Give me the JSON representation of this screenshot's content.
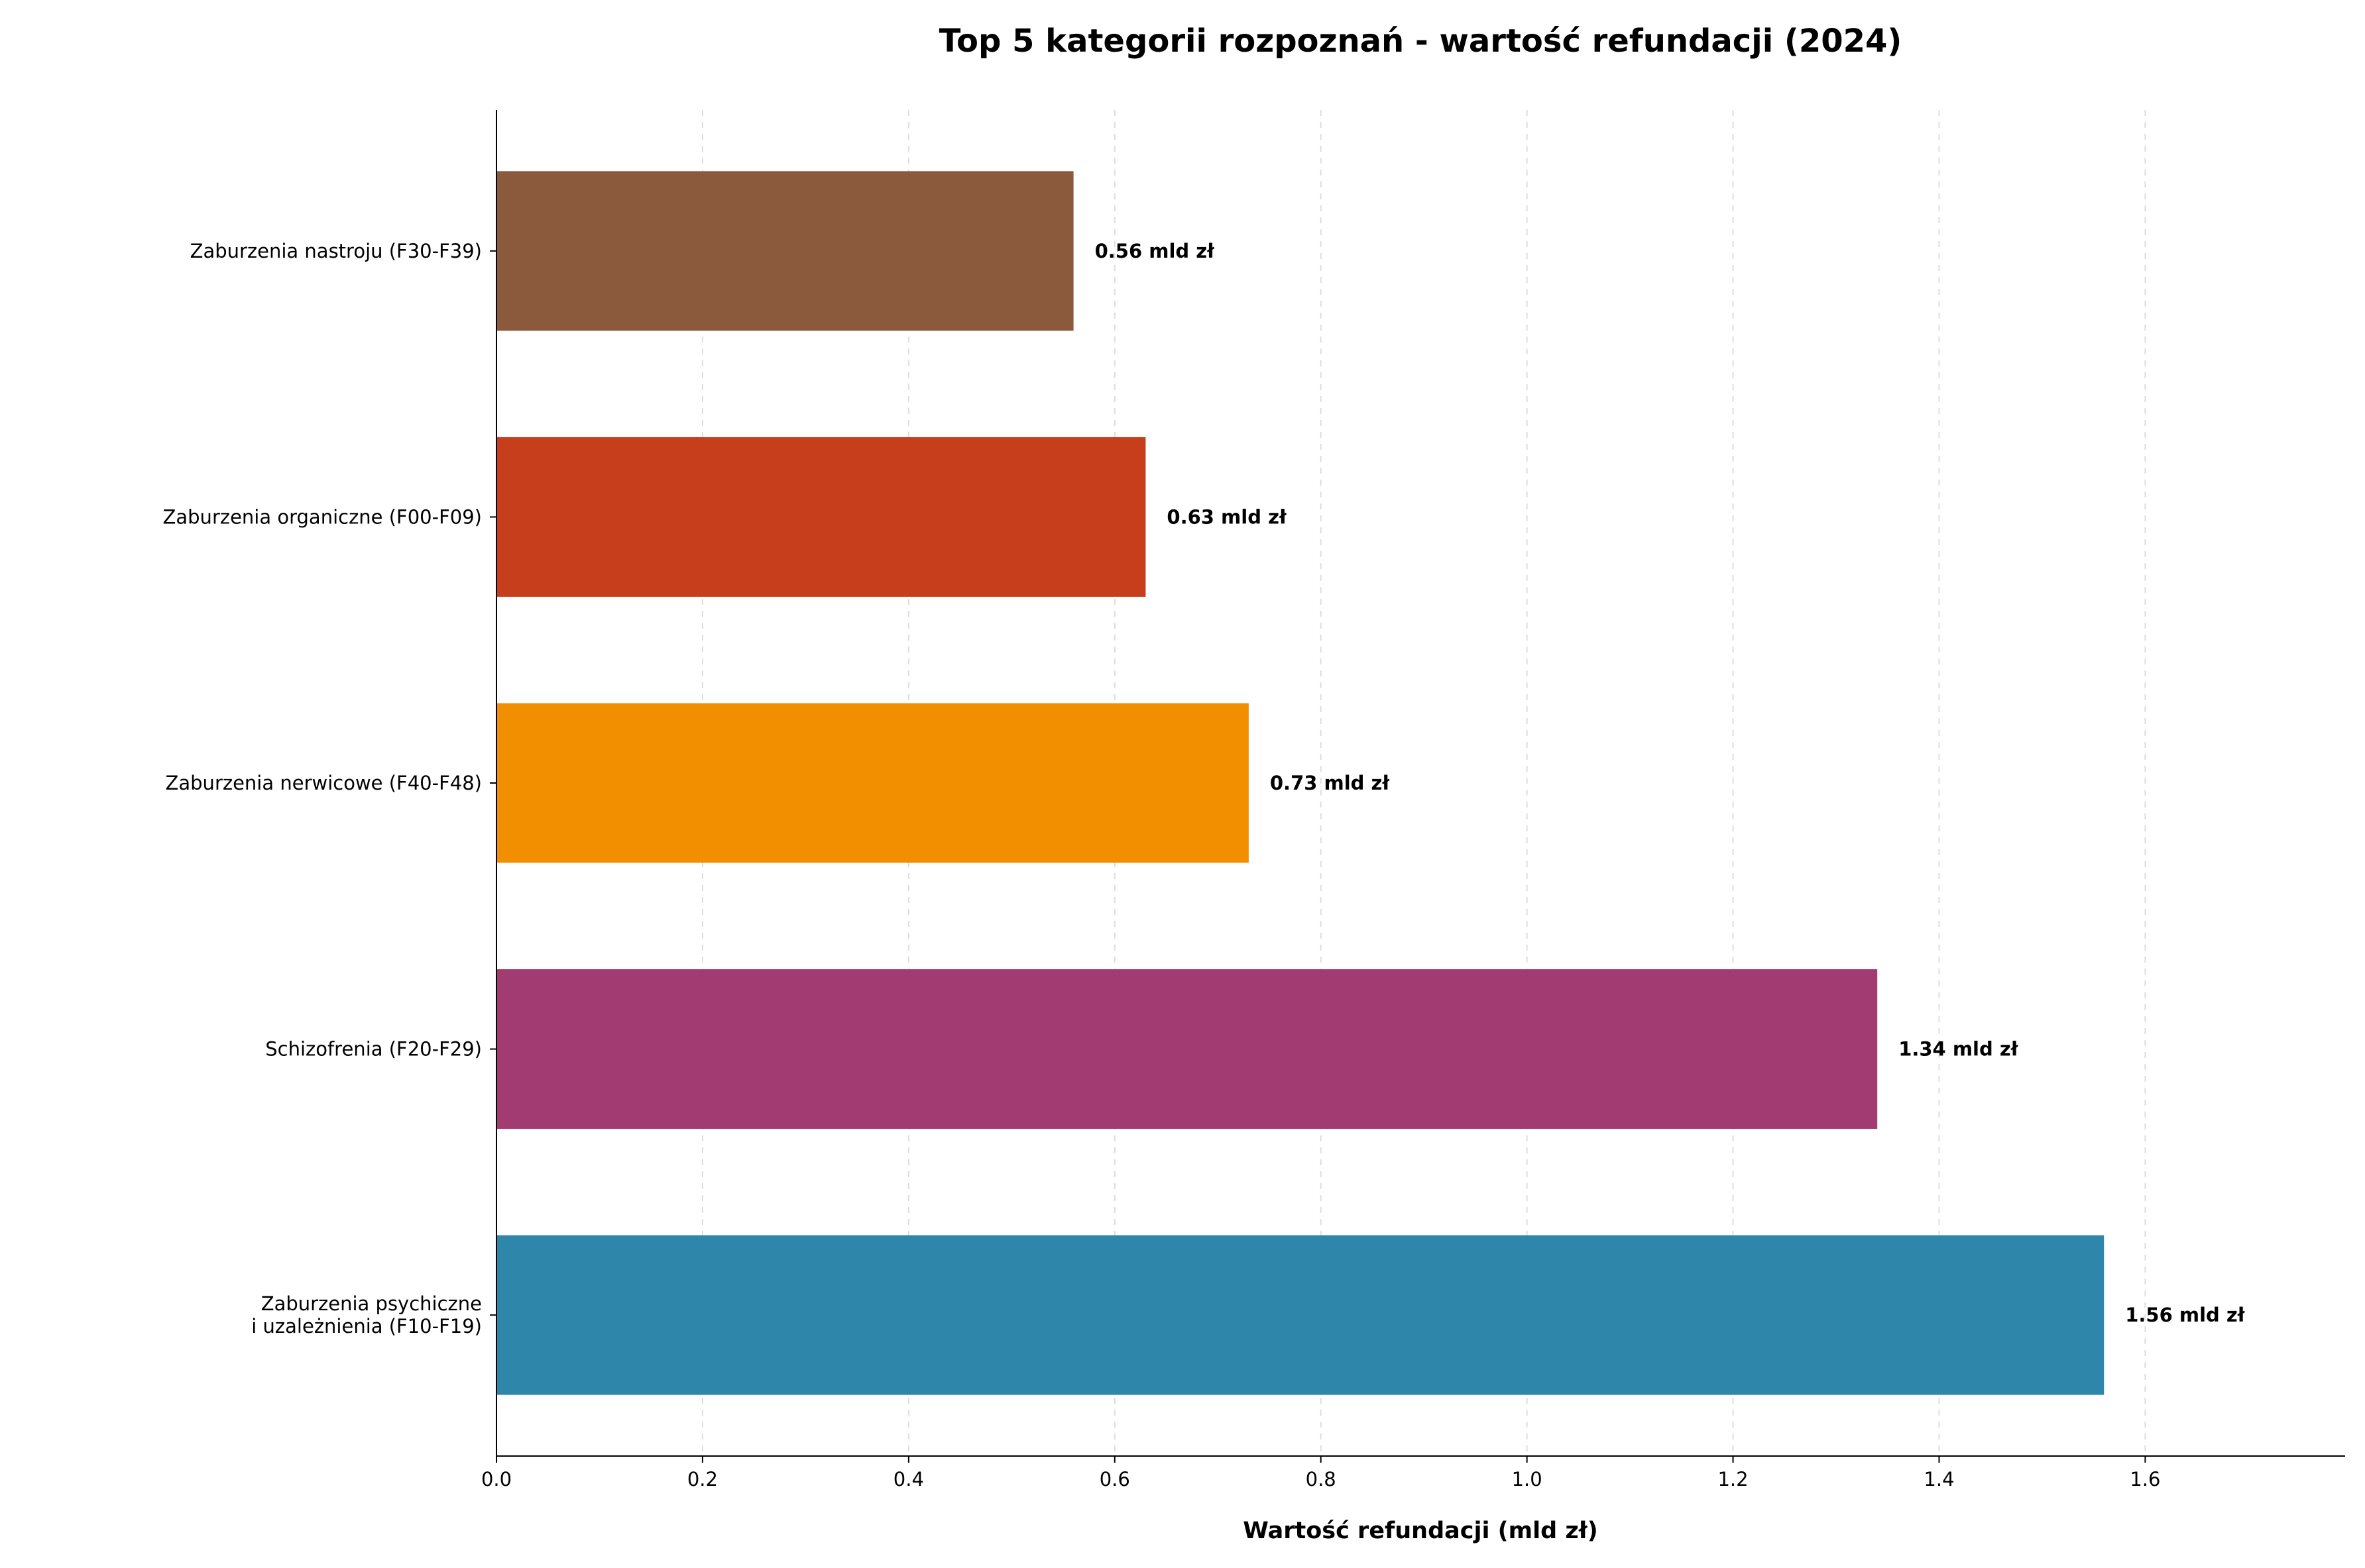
{
  "chart_data": {
    "type": "bar",
    "orientation": "horizontal",
    "title": "Top 5 kategorii rozpoznań - wartość refundacji (2024)",
    "xlabel": "Wartość refundacji (mld zł)",
    "ylabel": "",
    "categories": [
      [
        "Zaburzenia psychiczne",
        "i uzależnienia (F10-F19)"
      ],
      [
        "Schizofrenia (F20-F29)"
      ],
      [
        "Zaburzenia nerwicowe (F40-F48)"
      ],
      [
        "Zaburzenia organiczne (F00-F09)"
      ],
      [
        "Zaburzenia nastroju (F30-F39)"
      ]
    ],
    "values": [
      1.56,
      1.34,
      0.73,
      0.63,
      0.56
    ],
    "value_labels": [
      "1.56 mld zł",
      "1.34 mld zł",
      "0.73 mld zł",
      "0.63 mld zł",
      "0.56 mld zł"
    ],
    "colors": [
      "#2E86AB",
      "#A23B72",
      "#F18F01",
      "#C73E1D",
      "#8B5A3C"
    ],
    "xlim": [
      0,
      1.794
    ],
    "ylim": [
      -0.53,
      4.53
    ],
    "xticks": [
      0.0,
      0.2,
      0.4,
      0.6,
      0.8,
      1.0,
      1.2,
      1.4,
      1.6
    ],
    "xtick_labels": [
      "0.0",
      "0.2",
      "0.4",
      "0.6",
      "0.8",
      "1.0",
      "1.2",
      "1.4",
      "1.6"
    ],
    "grid": "x, dashed",
    "legend": "none"
  }
}
